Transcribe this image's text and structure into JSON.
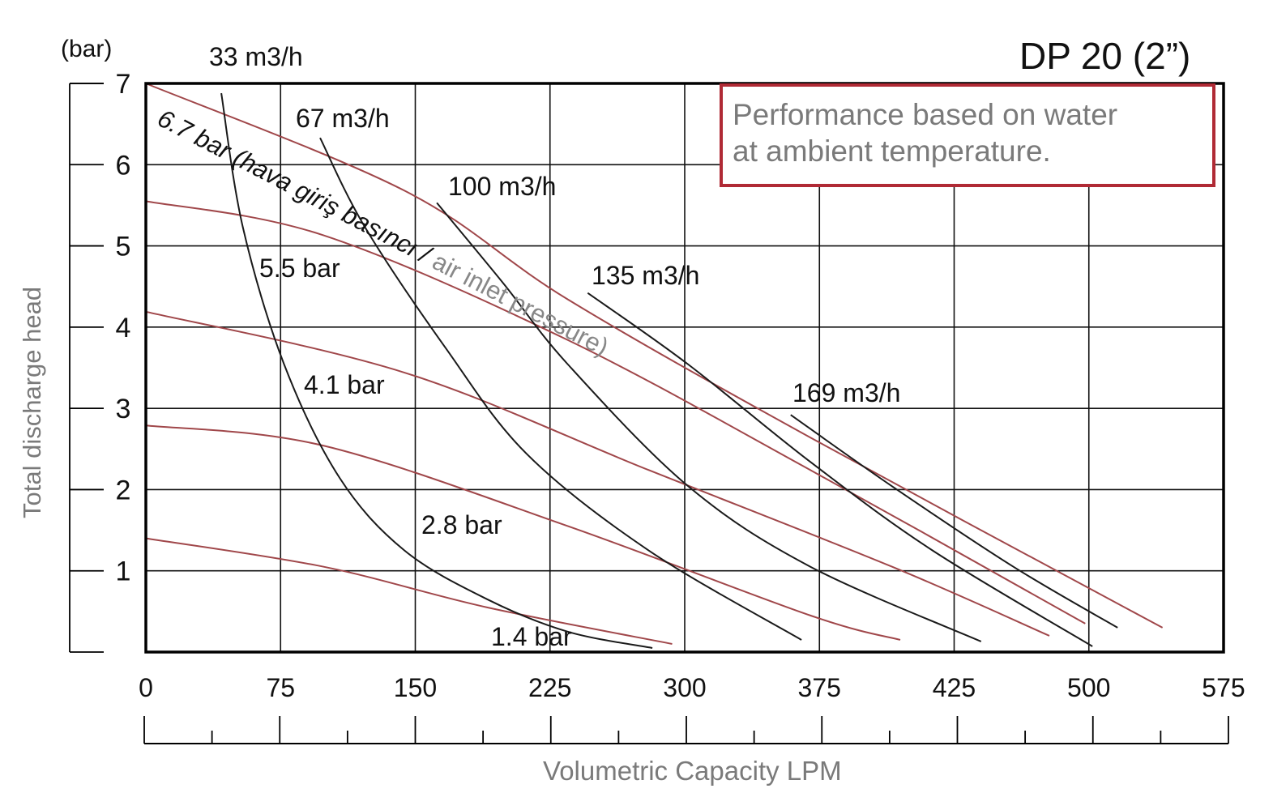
{
  "chart_data": {
    "type": "line",
    "title": "DP 20 (2”)",
    "xlabel": "Volumetric Capacity LPM",
    "ylabel": "Total discharge head",
    "yunit": "(bar)",
    "xticks": [
      "0",
      "75",
      "150",
      "225",
      "300",
      "375",
      "425",
      "500",
      "575"
    ],
    "yticks": [
      "1",
      "2",
      "3",
      "4",
      "5",
      "6",
      "7"
    ],
    "ylim": [
      0,
      7
    ],
    "xlim": [
      0,
      575
    ],
    "grid": true,
    "note": [
      "Performance based on water",
      "at ambient temperature."
    ],
    "pressure_label_prefix": "6.7 bar (hava giriş basıncı /",
    "pressure_label_suffix": "air inlet pressure)",
    "colors": {
      "pressure": "#a0474a",
      "flow": "#1a1a1a",
      "note_border": "#b02a35",
      "axis_label": "#7a7a7a"
    },
    "pressure_series": [
      {
        "name": "6.7 bar",
        "points": [
          [
            0,
            7.0
          ],
          [
            144,
            5.68
          ],
          [
            235,
            4.34
          ],
          [
            370,
            2.64
          ],
          [
            541,
            0.3
          ]
        ]
      },
      {
        "name": "5.5 bar",
        "points": [
          [
            0,
            5.55
          ],
          [
            99,
            5.13
          ],
          [
            235,
            3.84
          ],
          [
            370,
            2.24
          ],
          [
            498,
            0.35
          ]
        ]
      },
      {
        "name": "4.1 bar",
        "points": [
          [
            0,
            4.19
          ],
          [
            144,
            3.44
          ],
          [
            280,
            2.24
          ],
          [
            402,
            1.05
          ],
          [
            478,
            0.2
          ]
        ]
      },
      {
        "name": "2.8 bar",
        "points": [
          [
            0,
            2.79
          ],
          [
            99,
            2.54
          ],
          [
            235,
            1.55
          ],
          [
            370,
            0.45
          ],
          [
            405,
            0.15
          ]
        ]
      },
      {
        "name": "1.4 bar",
        "points": [
          [
            0,
            1.4
          ],
          [
            99,
            1.05
          ],
          [
            190,
            0.55
          ],
          [
            293,
            0.1
          ]
        ]
      }
    ],
    "flow_series": [
      {
        "name": "33 m3/h",
        "points": [
          [
            42,
            6.88
          ],
          [
            54,
            5.23
          ],
          [
            77,
            3.54
          ],
          [
            108,
            2.14
          ],
          [
            144,
            1.25
          ],
          [
            190,
            0.65
          ],
          [
            235,
            0.25
          ],
          [
            282,
            0.05
          ]
        ]
      },
      {
        "name": "67 m3/h",
        "points": [
          [
            97,
            6.33
          ],
          [
            122,
            5.23
          ],
          [
            167,
            3.74
          ],
          [
            212,
            2.44
          ],
          [
            280,
            1.25
          ],
          [
            365,
            0.15
          ]
        ]
      },
      {
        "name": "100 m3/h",
        "points": [
          [
            162,
            5.53
          ],
          [
            199,
            4.54
          ],
          [
            235,
            3.54
          ],
          [
            302,
            2.04
          ],
          [
            370,
            1.05
          ],
          [
            440,
            0.13
          ]
        ]
      },
      {
        "name": "135 m3/h",
        "points": [
          [
            246,
            4.42
          ],
          [
            302,
            3.54
          ],
          [
            370,
            2.34
          ],
          [
            417,
            1.25
          ],
          [
            502,
            0.07
          ]
        ]
      },
      {
        "name": "169 m3/h",
        "points": [
          [
            359,
            2.92
          ],
          [
            402,
            2.04
          ],
          [
            458,
            1.05
          ],
          [
            516,
            0.3
          ]
        ]
      }
    ],
    "series_labels": [
      "33 m3/h",
      "67 m3/h",
      "100 m3/h",
      "135 m3/h",
      "169 m3/h",
      "5.5 bar",
      "4.1 bar",
      "2.8 bar",
      "1.4 bar"
    ]
  }
}
